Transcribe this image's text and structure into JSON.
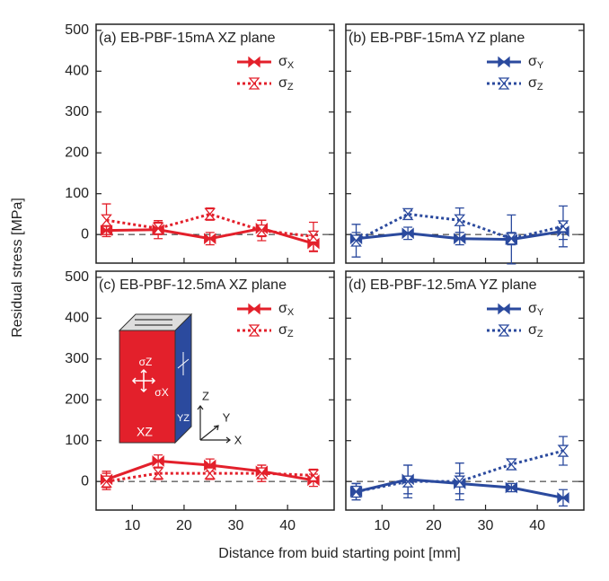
{
  "y_label": "Residual stress [MPa]",
  "x_label": "Distance from buid starting point [mm]",
  "inset": {
    "front_sigma_top": "σZ",
    "front_sigma_right": "σX",
    "front_face": "XZ",
    "side_face": "YZ",
    "axis_z": "Z",
    "axis_y": "Y",
    "axis_x": "X"
  },
  "chart_data": [
    {
      "type": "line",
      "title": "(a) EB-PBF-15mA XZ plane",
      "x": [
        5,
        15,
        25,
        35,
        45
      ],
      "series": [
        {
          "name": "σX",
          "color": "#e3202b",
          "line_style": "solid",
          "values": [
            10,
            12,
            -10,
            15,
            -22
          ],
          "errors": [
            10,
            22,
            15,
            20,
            20
          ]
        },
        {
          "name": "σZ",
          "color": "#e3202b",
          "line_style": "dotted",
          "values": [
            35,
            15,
            50,
            10,
            -5
          ],
          "errors": [
            40,
            15,
            15,
            25,
            35
          ]
        }
      ],
      "xlim": [
        3,
        49
      ],
      "xticks": [
        10,
        20,
        30,
        40
      ],
      "ylim": [
        -70,
        515
      ],
      "yticks": [
        0,
        100,
        200,
        300,
        400,
        500
      ],
      "reference_line": 0
    },
    {
      "type": "line",
      "title": "(b) EB-PBF-15mA YZ plane",
      "x": [
        5,
        15,
        25,
        35,
        45
      ],
      "series": [
        {
          "name": "σY",
          "color": "#2b4a9e",
          "line_style": "solid",
          "values": [
            -10,
            3,
            -10,
            -12,
            8
          ],
          "errors": [
            15,
            15,
            15,
            60,
            20
          ]
        },
        {
          "name": "σZ",
          "color": "#2b4a9e",
          "line_style": "dotted",
          "values": [
            -15,
            50,
            35,
            -10,
            20
          ],
          "errors": [
            40,
            8,
            30,
            15,
            50
          ]
        }
      ],
      "xlim": [
        3,
        49
      ],
      "xticks": [
        10,
        20,
        30,
        40
      ],
      "ylim": [
        -70,
        515
      ],
      "yticks": [
        0,
        100,
        200,
        300,
        400,
        500
      ],
      "reference_line": 0
    },
    {
      "type": "line",
      "title": "(c) EB-PBF-12.5mA XZ plane",
      "x": [
        5,
        15,
        25,
        35,
        45
      ],
      "series": [
        {
          "name": "σX",
          "color": "#e3202b",
          "line_style": "solid",
          "values": [
            5,
            50,
            40,
            25,
            3
          ],
          "errors": [
            20,
            15,
            15,
            15,
            15
          ]
        },
        {
          "name": "σZ",
          "color": "#e3202b",
          "line_style": "dotted",
          "values": [
            0,
            20,
            20,
            20,
            15
          ],
          "errors": [
            20,
            15,
            15,
            20,
            15
          ]
        }
      ],
      "xlim": [
        3,
        49
      ],
      "xticks": [
        10,
        20,
        30,
        40
      ],
      "ylim": [
        -70,
        515
      ],
      "yticks": [
        0,
        100,
        200,
        300,
        400,
        500
      ],
      "reference_line": 0
    },
    {
      "type": "line",
      "title": "(d) EB-PBF-12.5mA YZ plane",
      "x": [
        5,
        15,
        25,
        35,
        45
      ],
      "series": [
        {
          "name": "σY",
          "color": "#2b4a9e",
          "line_style": "solid",
          "values": [
            -25,
            5,
            -5,
            -15,
            -40
          ],
          "errors": [
            20,
            35,
            25,
            10,
            20
          ]
        },
        {
          "name": "σZ",
          "color": "#2b4a9e",
          "line_style": "dotted",
          "values": [
            -25,
            0,
            0,
            42,
            75
          ],
          "errors": [
            20,
            40,
            45,
            10,
            35
          ]
        }
      ],
      "xlim": [
        3,
        49
      ],
      "xticks": [
        10,
        20,
        30,
        40
      ],
      "ylim": [
        -70,
        515
      ],
      "yticks": [
        0,
        100,
        200,
        300,
        400,
        500
      ],
      "reference_line": 0
    }
  ]
}
